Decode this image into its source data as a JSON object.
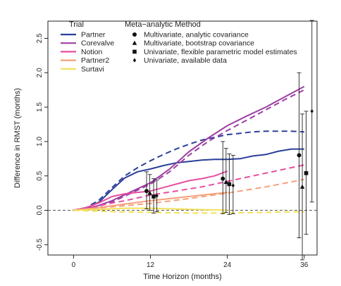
{
  "chart_data": {
    "type": "line",
    "xlabel": "Time Horizon (months)",
    "ylabel": "Difference in RMST (months)",
    "xlim": [
      -4,
      38
    ],
    "ylim": [
      -0.65,
      2.75
    ],
    "x_ticks": [
      0,
      12,
      24,
      36
    ],
    "y_ticks": [
      -0.5,
      0.0,
      0.5,
      1.0,
      1.5,
      2.0,
      2.5
    ],
    "reference_line_y": 0,
    "legend_trial": {
      "title": "Trial",
      "position": "top-left",
      "entries": [
        {
          "name": "Partner",
          "color": "#2b3f99"
        },
        {
          "name": "Corevalve",
          "color": "#9c3fa3"
        },
        {
          "name": "Notion",
          "color": "#e64ea0"
        },
        {
          "name": "Partner2",
          "color": "#f7a07a"
        },
        {
          "name": "Surtavi",
          "color": "#f2e05a"
        }
      ]
    },
    "legend_method": {
      "title": "Meta−analytic Method",
      "position": "top-center",
      "entries": [
        {
          "name": "Multivariate, analytic covariance",
          "symbol": "circle"
        },
        {
          "name": "Multivariate, bootstrap covariance",
          "symbol": "triangle"
        },
        {
          "name": "Univariate, flexible parametric model estimates",
          "symbol": "square"
        },
        {
          "name": "Univariate, available data",
          "symbol": "diamond"
        }
      ]
    },
    "series": [
      {
        "name": "Partner",
        "style": "solid",
        "color": "#2b3f99",
        "x": [
          0,
          2,
          4,
          6,
          8,
          10,
          12,
          14,
          16,
          18,
          20,
          22,
          24,
          26,
          28,
          30,
          32,
          34,
          36
        ],
        "y": [
          0,
          0.03,
          0.12,
          0.3,
          0.47,
          0.56,
          0.6,
          0.65,
          0.69,
          0.71,
          0.73,
          0.74,
          0.74,
          0.75,
          0.79,
          0.81,
          0.86,
          0.89,
          0.89
        ]
      },
      {
        "name": "Partner",
        "style": "dashed",
        "color": "#2b3f99",
        "x": [
          0,
          2,
          4,
          6,
          8,
          10,
          12,
          14,
          16,
          18,
          20,
          22,
          24,
          26,
          28,
          30,
          32,
          34,
          36
        ],
        "y": [
          0,
          0.04,
          0.15,
          0.33,
          0.5,
          0.62,
          0.72,
          0.81,
          0.89,
          0.96,
          1.02,
          1.06,
          1.1,
          1.12,
          1.14,
          1.15,
          1.15,
          1.15,
          1.14
        ]
      },
      {
        "name": "Corevalve",
        "style": "solid",
        "color": "#9c3fa3",
        "x": [
          0,
          3,
          6,
          9,
          12,
          15,
          18,
          21,
          24,
          27,
          30,
          33,
          36
        ],
        "y": [
          0,
          0.04,
          0.14,
          0.27,
          0.4,
          0.6,
          0.85,
          1.05,
          1.23,
          1.37,
          1.5,
          1.65,
          1.8
        ]
      },
      {
        "name": "Corevalve",
        "style": "dashed",
        "color": "#9c3fa3",
        "x": [
          0,
          3,
          6,
          9,
          12,
          15,
          18,
          21,
          24,
          27,
          30,
          33,
          36
        ],
        "y": [
          0,
          0.03,
          0.12,
          0.25,
          0.38,
          0.56,
          0.8,
          1.0,
          1.16,
          1.31,
          1.46,
          1.61,
          1.75
        ]
      },
      {
        "name": "Notion",
        "style": "solid",
        "color": "#e64ea0",
        "x": [
          0,
          2,
          4,
          6,
          8,
          10,
          12,
          14,
          16,
          18,
          20,
          22,
          24
        ],
        "y": [
          0,
          0.04,
          0.11,
          0.2,
          0.24,
          0.26,
          0.28,
          0.33,
          0.38,
          0.43,
          0.46,
          0.5,
          0.57
        ]
      },
      {
        "name": "Notion",
        "style": "dashed",
        "color": "#e64ea0",
        "x": [
          0,
          4,
          8,
          12,
          16,
          20,
          24,
          28,
          32,
          36
        ],
        "y": [
          0,
          0.07,
          0.14,
          0.22,
          0.28,
          0.34,
          0.42,
          0.5,
          0.58,
          0.66
        ]
      },
      {
        "name": "Partner2",
        "style": "solid",
        "color": "#f7a07a",
        "x": [
          0,
          4,
          8,
          12,
          16,
          20,
          24
        ],
        "y": [
          0,
          0.04,
          0.09,
          0.14,
          0.18,
          0.22,
          0.26
        ]
      },
      {
        "name": "Partner2",
        "style": "dashed",
        "color": "#f7a07a",
        "x": [
          0,
          6,
          12,
          18,
          24,
          30,
          36
        ],
        "y": [
          0,
          0.05,
          0.1,
          0.17,
          0.25,
          0.34,
          0.45
        ]
      },
      {
        "name": "Surtavi",
        "style": "solid",
        "color": "#f2e05a",
        "x": [
          0,
          4,
          8,
          12,
          16,
          20,
          24
        ],
        "y": [
          0,
          0.015,
          0.03,
          0.03,
          0.02,
          0.01,
          0.0
        ]
      },
      {
        "name": "Surtavi",
        "style": "dashed",
        "color": "#f2e05a",
        "x": [
          0,
          6,
          12,
          18,
          24,
          30,
          36
        ],
        "y": [
          0,
          -0.02,
          -0.03,
          -0.04,
          -0.04,
          -0.03,
          -0.02
        ]
      }
    ],
    "estimates": [
      {
        "x": 11.4,
        "y": 0.28,
        "lo": 0.02,
        "hi": 0.56,
        "symbol": "circle"
      },
      {
        "x": 11.9,
        "y": 0.25,
        "lo": 0.0,
        "hi": 0.52,
        "symbol": "triangle"
      },
      {
        "x": 12.5,
        "y": 0.2,
        "lo": -0.04,
        "hi": 0.46,
        "symbol": "square"
      },
      {
        "x": 13.0,
        "y": 0.21,
        "lo": -0.02,
        "hi": 0.44,
        "symbol": "diamond"
      },
      {
        "x": 23.3,
        "y": 0.46,
        "lo": -0.05,
        "hi": 1.0,
        "symbol": "circle"
      },
      {
        "x": 23.8,
        "y": 0.41,
        "lo": -0.03,
        "hi": 0.9,
        "symbol": "triangle"
      },
      {
        "x": 24.3,
        "y": 0.38,
        "lo": -0.06,
        "hi": 0.82,
        "symbol": "square"
      },
      {
        "x": 24.9,
        "y": 0.36,
        "lo": -0.05,
        "hi": 0.8,
        "symbol": "diamond"
      },
      {
        "x": 35.2,
        "y": 0.8,
        "lo": -0.4,
        "hi": 2.0,
        "symbol": "circle"
      },
      {
        "x": 35.7,
        "y": 0.34,
        "lo": -0.72,
        "hi": 1.4,
        "symbol": "triangle"
      },
      {
        "x": 36.3,
        "y": 0.54,
        "lo": -0.35,
        "hi": 1.44,
        "symbol": "square"
      },
      {
        "x": 37.2,
        "y": 1.44,
        "lo": 0.12,
        "hi": 2.76,
        "symbol": "diamond"
      }
    ]
  }
}
